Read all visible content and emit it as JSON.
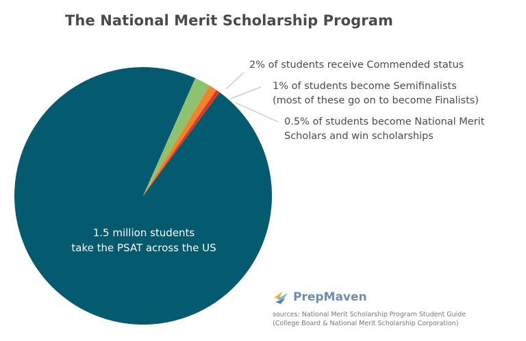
{
  "title": "The National Merit Scholarship Program",
  "chart_data": {
    "type": "pie",
    "slices": [
      {
        "label": "1.5 million students take the PSAT across the US",
        "value": 96.5,
        "color": "#045a6e"
      },
      {
        "label": "2% of students receive Commended status",
        "value": 2,
        "color": "#8dc26f"
      },
      {
        "label": "1% of students become Semifinalists (most of these go on to become Finalists)",
        "value": 1,
        "color": "#f0832b"
      },
      {
        "label": "0.5% of students become National Merit Scholars and win scholarships",
        "value": 0.5,
        "color": "#d8392b"
      }
    ],
    "annotations": {
      "commended": "2% of students receive Commended status",
      "semifinalists": [
        "1% of students become Semifinalists",
        "(most of these go on to become Finalists)"
      ],
      "scholars": [
        "0.5% of students become National Merit",
        "Scholars and win scholarships"
      ],
      "main": [
        "1.5 million students",
        "take the PSAT across the US"
      ]
    }
  },
  "logo": {
    "name": "PrepMaven",
    "icon": "prepmaven-bird-logo"
  },
  "sources": [
    "sources: National Merit Scholarship Program Student Guide",
    "(College Board & National Merit Scholarship Corporation)"
  ]
}
